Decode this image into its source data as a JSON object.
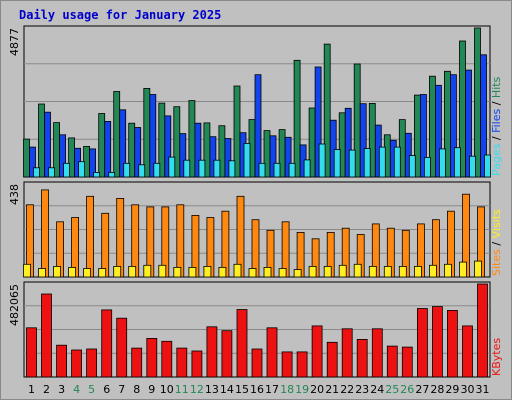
{
  "chart_data": {
    "type": "bar",
    "title": "Daily usage for January 2025",
    "categories": [
      "1",
      "2",
      "3",
      "4",
      "5",
      "6",
      "7",
      "8",
      "9",
      "10",
      "11",
      "12",
      "13",
      "14",
      "15",
      "16",
      "17",
      "18",
      "19",
      "20",
      "21",
      "22",
      "23",
      "24",
      "25",
      "26",
      "27",
      "28",
      "29",
      "30",
      "31"
    ],
    "weekend_days": [
      "4",
      "5",
      "11",
      "12",
      "18",
      "19",
      "25",
      "26"
    ],
    "colors": {
      "pages": "#33ddee",
      "files": "#1144ee",
      "hits": "#228855",
      "visits": "#ffee22",
      "sites": "#ff8811",
      "kbytes": "#ee1111",
      "background": "#c0c0c0",
      "weekday_label": "#000000",
      "weekend_label": "#228855"
    },
    "panels": [
      {
        "name": "hits",
        "ymax_label": "4877",
        "right_label_parts": [
          {
            "text": "Pages",
            "color": "#33ddee"
          },
          {
            "text": " / ",
            "color": "#000000"
          },
          {
            "text": "Files",
            "color": "#1144ee"
          },
          {
            "text": " / ",
            "color": "#000000"
          },
          {
            "text": "Hits",
            "color": "#228855"
          }
        ],
        "ymax": 4877,
        "series": [
          {
            "name": "Hits",
            "color": "#228855",
            "values": [
              1240,
              2390,
              1780,
              1280,
              1000,
              2080,
              2800,
              1760,
              2900,
              2420,
              2300,
              2500,
              1770,
              1680,
              2980,
              1880,
              1520,
              1550,
              3820,
              2260,
              4350,
              2100,
              3700,
              2410,
              1380,
              1880,
              2680,
              3300,
              3460,
              4450,
              4877
            ]
          },
          {
            "name": "Files",
            "color": "#1144ee",
            "values": [
              980,
              2120,
              1380,
              940,
              920,
              1820,
              2200,
              1620,
              2700,
              2000,
              1420,
              1760,
              1320,
              1260,
              1450,
              3350,
              1350,
              1300,
              1050,
              3600,
              1860,
              2250,
              2400,
              1700,
              1200,
              1430,
              2700,
              3000,
              3350,
              3500,
              4000
            ]
          },
          {
            "name": "Pages",
            "color": "#33ddee",
            "values": [
              300,
              300,
              450,
              500,
              150,
              150,
              450,
              400,
              450,
              650,
              550,
              550,
              550,
              530,
              1100,
              450,
              450,
              450,
              560,
              1080,
              900,
              880,
              930,
              980,
              980,
              700,
              640,
              920,
              960,
              680,
              720
            ]
          }
        ]
      },
      {
        "name": "sites",
        "ymax_label": "438",
        "right_label_parts": [
          {
            "text": "Sites",
            "color": "#ff8811"
          },
          {
            "text": " / ",
            "color": "#000000"
          },
          {
            "text": "Visits",
            "color": "#ffee22"
          }
        ],
        "ymax": 438,
        "series": [
          {
            "name": "Sites",
            "color": "#ff8811",
            "values": [
              340,
              410,
              260,
              280,
              380,
              300,
              370,
              340,
              330,
              330,
              340,
              290,
              280,
              310,
              380,
              270,
              220,
              260,
              210,
              180,
              210,
              230,
              200,
              250,
              230,
              220,
              250,
              270,
              310,
              390,
              330
            ]
          },
          {
            "name": "Visits",
            "color": "#ffee22",
            "values": [
              60,
              40,
              50,
              45,
              40,
              40,
              50,
              50,
              55,
              55,
              45,
              45,
              50,
              45,
              60,
              40,
              45,
              40,
              35,
              50,
              50,
              55,
              60,
              50,
              50,
              50,
              50,
              55,
              60,
              70,
              75
            ]
          }
        ]
      },
      {
        "name": "kbytes",
        "ymax_label": "482065",
        "right_label_parts": [
          {
            "text": "KBytes",
            "color": "#ee1111"
          }
        ],
        "ymax": 482065,
        "series": [
          {
            "name": "KBytes",
            "color": "#ee1111",
            "values": [
              255000,
              430000,
              165000,
              140000,
              145000,
              348000,
              305000,
              150000,
              200000,
              185000,
              150000,
              135000,
              260000,
              240000,
              350000,
              145000,
              255000,
              130000,
              130000,
              265000,
              180000,
              250000,
              195000,
              250000,
              160000,
              155000,
              355000,
              365000,
              345000,
              265000,
              482065
            ]
          }
        ]
      }
    ]
  }
}
